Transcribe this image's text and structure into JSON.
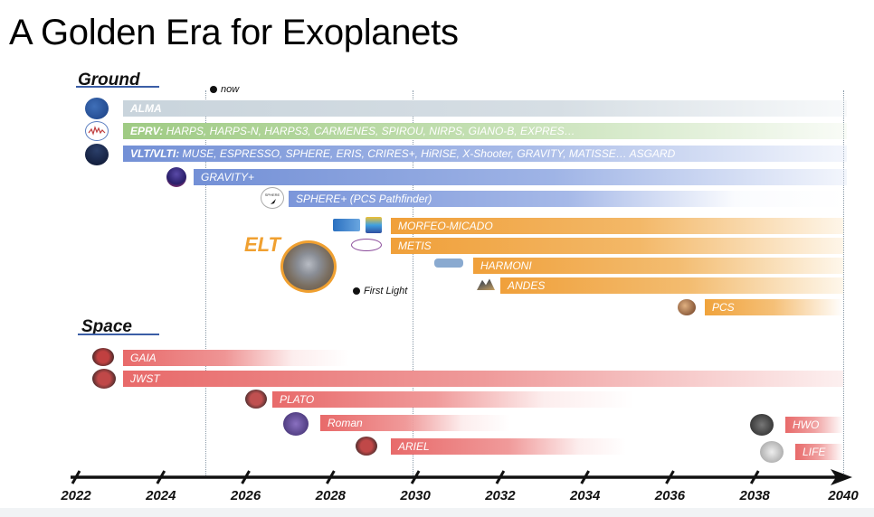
{
  "title": "A Golden Era for Exoplanets",
  "sections": {
    "ground": "Ground",
    "space": "Space"
  },
  "markers": {
    "now": "now",
    "first_light": "First Light",
    "elt": "ELT"
  },
  "colors": {
    "alma": "#c9d4dc",
    "eprv": "#a9cf8e",
    "vlt": "#7d98d8",
    "elt": "#f0a33c",
    "space": "#e86a6a",
    "axis": "#111111"
  },
  "ground_bars": [
    {
      "label_bold": "ALMA",
      "label": "",
      "start": 2023,
      "end": 2040
    },
    {
      "label_bold": "EPRV:",
      "label": " HARPS, HARPS-N, HARPS3, CARMENES, SPIROU, NIRPS, GIANO-B, EXPRES…",
      "start": 2023,
      "end": 2040
    },
    {
      "label_bold": "VLT/VLTI:",
      "label": " MUSE, ESPRESSO, SPHERE, ERIS, CRIRES+, HiRISE, X-Shooter, GRAVITY, MATISSE… ASGARD",
      "start": 2023,
      "end": 2040
    },
    {
      "label_bold": "",
      "label": "GRAVITY+",
      "start": 2024.7,
      "end": 2040
    },
    {
      "label_bold": "",
      "label": "SPHERE+ (PCS Pathfinder)",
      "start": 2027,
      "end": 2040
    }
  ],
  "elt_bars": [
    {
      "label": "MORFEO-MICADO",
      "start": 2029.5,
      "end": 2040
    },
    {
      "label": "METIS",
      "start": 2029.5,
      "end": 2040
    },
    {
      "label": "HARMONI",
      "start": 2031.5,
      "end": 2040
    },
    {
      "label": "ANDES",
      "start": 2032.6,
      "end": 2040
    },
    {
      "label": "PCS",
      "start": 2036.7,
      "end": 2040
    }
  ],
  "space_bars": [
    {
      "label": "GAIA",
      "start": 2023,
      "end": 2028.5
    },
    {
      "label": "JWST",
      "start": 2023,
      "end": 2040
    },
    {
      "label": "PLATO",
      "start": 2026.6,
      "end": 2036
    },
    {
      "label": "Roman",
      "start": 2027.8,
      "end": 2033
    },
    {
      "label": "ARIEL",
      "start": 2029.5,
      "end": 2035
    },
    {
      "label": "HWO",
      "start": 2038.8,
      "end": 2040
    },
    {
      "label": "LIFE",
      "start": 2039,
      "end": 2040
    }
  ],
  "axis": {
    "ticks": [
      "2022",
      "2024",
      "2026",
      "2028",
      "2030",
      "2032",
      "2034",
      "2036",
      "2038",
      "2040"
    ]
  },
  "icons": {
    "alma": "alma-logo-icon",
    "eprv": "eprv-logo-icon",
    "vlt": "vlt-logo-icon",
    "gravity": "gravity-plus-logo-icon",
    "sphere": "sphere-plus-logo-icon",
    "morfeo": "morfeo-logo-icon",
    "micado": "micado-logo-icon",
    "metis": "metis-logo-icon",
    "harmoni": "harmoni-logo-icon",
    "andes": "andes-logo-icon",
    "pcs": "pcs-logo-icon",
    "elt": "elt-telescope-icon"
  }
}
